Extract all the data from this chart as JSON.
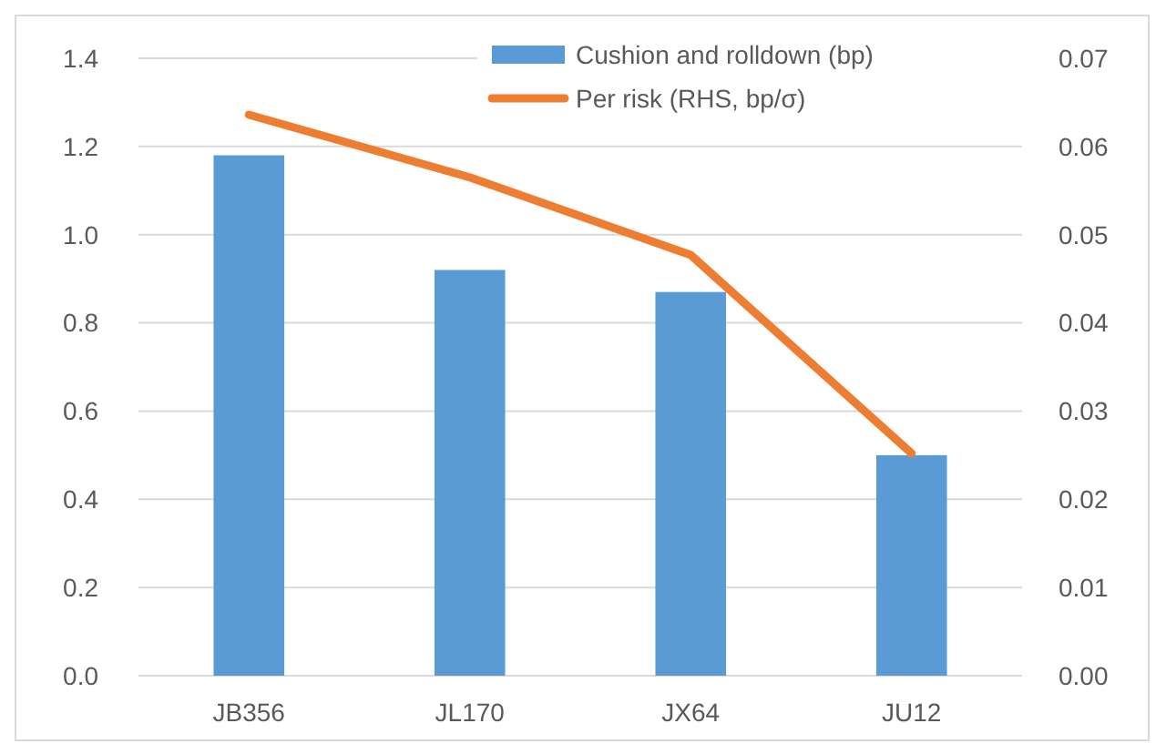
{
  "chart_data": {
    "type": "bar",
    "categories": [
      "JB356",
      "JL170",
      "JX64",
      "JU12"
    ],
    "series": [
      {
        "name": "Cushion and rolldown (bp)",
        "color": "#5b9bd5",
        "values": [
          1.18,
          0.92,
          0.87,
          0.5
        ]
      },
      {
        "name": "Per risk (RHS, bp/σ)",
        "type": "line",
        "axis": "y2",
        "color": "#ed7d31",
        "values": [
          0.0636,
          0.0565,
          0.0477,
          0.0252
        ]
      }
    ],
    "ylim": [
      0,
      1.4
    ],
    "yticks": [
      {
        "value": 0,
        "label": "0.0"
      },
      {
        "value": 0.2,
        "label": "0.2"
      },
      {
        "value": 0.4,
        "label": "0.4"
      },
      {
        "value": 0.6,
        "label": "0.6"
      },
      {
        "value": 0.8,
        "label": "0.8"
      },
      {
        "value": 1,
        "label": "1.0"
      },
      {
        "value": 1.2,
        "label": "1.2"
      },
      {
        "value": 1.4,
        "label": "1.4"
      }
    ],
    "y2lim": [
      0,
      0.07
    ],
    "y2ticks": [
      {
        "value": 0,
        "label": "0.00"
      },
      {
        "value": 0.01,
        "label": "0.01"
      },
      {
        "value": 0.02,
        "label": "0.02"
      },
      {
        "value": 0.03,
        "label": "0.03"
      },
      {
        "value": 0.04,
        "label": "0.04"
      },
      {
        "value": 0.05,
        "label": "0.05"
      },
      {
        "value": 0.06,
        "label": "0.06"
      },
      {
        "value": 0.07,
        "label": "0.07"
      }
    ],
    "grid": "y",
    "legend": "top right",
    "marker": "none",
    "line_style": "solid"
  }
}
